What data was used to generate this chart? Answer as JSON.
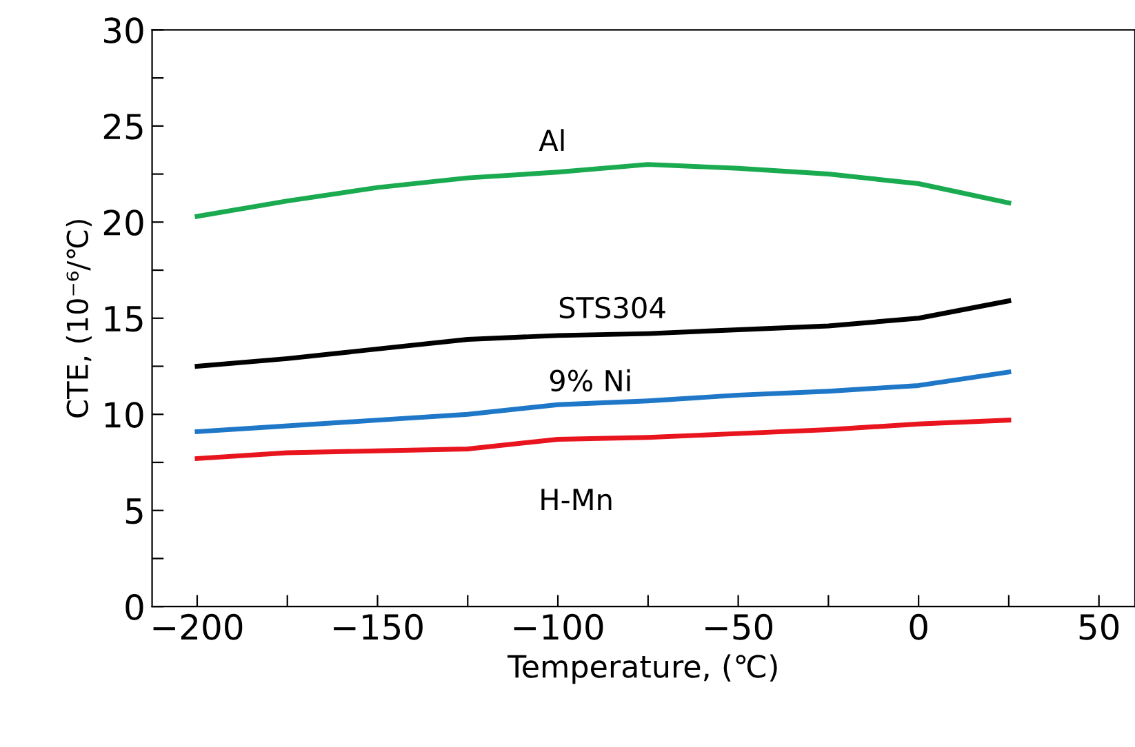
{
  "chart_data": {
    "type": "line",
    "xlabel": "Temperature, (℃)",
    "ylabel": "CTE, (10⁻⁶/℃)",
    "x": [
      -200,
      -175,
      -150,
      -125,
      -100,
      -75,
      -50,
      -25,
      0,
      25
    ],
    "xlim": [
      -212.5,
      60
    ],
    "ylim": [
      0,
      30
    ],
    "xticks": [
      -200,
      {
        "value": -175,
        "label": null
      },
      -150,
      {
        "value": -125,
        "label": null
      },
      -100,
      {
        "value": -75,
        "label": null
      },
      -50,
      {
        "value": -25,
        "label": null
      },
      0,
      {
        "value": 25,
        "label": null
      },
      50
    ],
    "yticks": [
      0,
      {
        "value": 2.5,
        "label": null
      },
      5,
      {
        "value": 7.5,
        "label": null
      },
      10,
      {
        "value": 12.5,
        "label": null
      },
      15,
      {
        "value": 17.5,
        "label": null
      },
      20,
      {
        "value": 22.5,
        "label": null
      },
      25,
      {
        "value": 27.5,
        "label": null
      },
      30
    ],
    "grid": false,
    "legend": false,
    "marker": "none",
    "line_style": "solid",
    "series": [
      {
        "name": "Al",
        "color": "#1aaa50",
        "values": [
          20.3,
          21.1,
          21.8,
          22.3,
          22.6,
          23.0,
          22.8,
          22.5,
          22.0,
          21.0
        ]
      },
      {
        "name": "STS304",
        "color": "#000000",
        "values": [
          12.5,
          12.9,
          13.4,
          13.9,
          14.1,
          14.2,
          14.4,
          14.6,
          15.0,
          15.9
        ]
      },
      {
        "name": "9% Ni",
        "color": "#1f77c8",
        "values": [
          9.1,
          9.4,
          9.7,
          10.0,
          10.5,
          10.7,
          11.0,
          11.2,
          11.5,
          12.2
        ]
      },
      {
        "name": "H-Mn",
        "color": "#e8141e",
        "values": [
          7.7,
          8.0,
          8.1,
          8.2,
          8.7,
          8.8,
          9.0,
          9.2,
          9.5,
          9.7
        ]
      }
    ]
  }
}
